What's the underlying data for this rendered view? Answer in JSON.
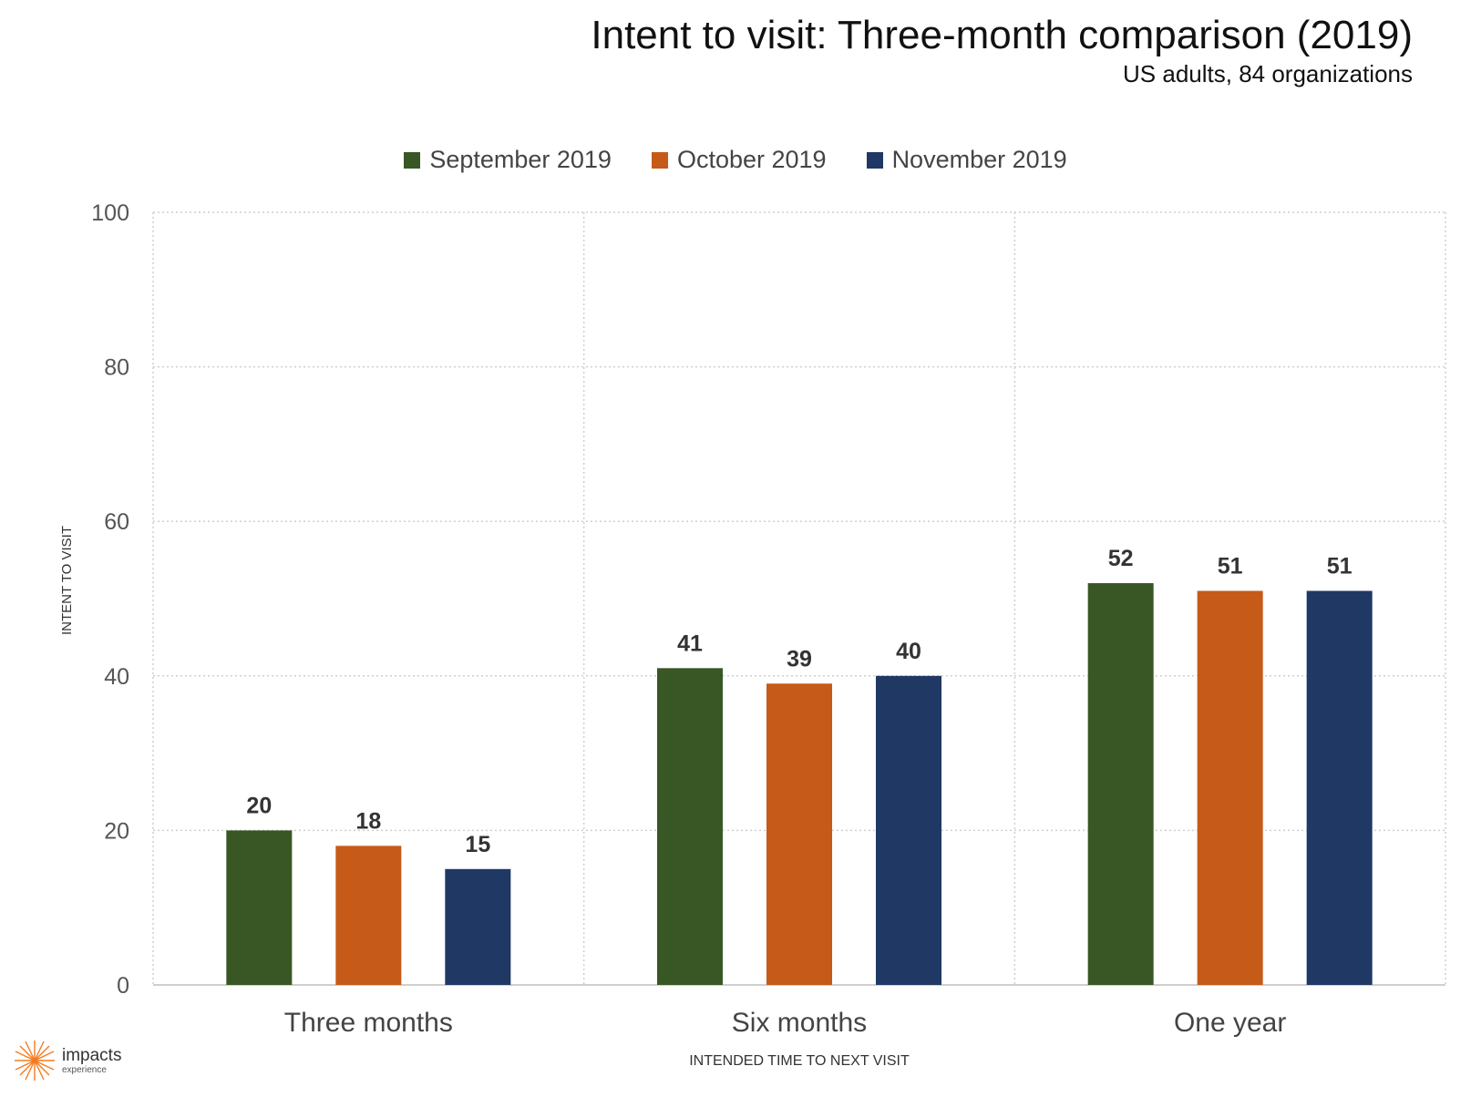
{
  "chart_data": {
    "type": "bar",
    "title": "Intent to visit: Three-month comparison (2019)",
    "subtitle": "US adults, 84 organizations",
    "xlabel": "INTENDED TIME TO NEXT VISIT",
    "ylabel": "INTENT TO VISIT",
    "categories": [
      "Three months",
      "Six months",
      "One year"
    ],
    "series": [
      {
        "name": "September 2019",
        "color": "#385724",
        "values": [
          20,
          41,
          52
        ]
      },
      {
        "name": "October 2019",
        "color": "#C55A19",
        "values": [
          18,
          39,
          51
        ]
      },
      {
        "name": "November 2019",
        "color": "#1F3864",
        "values": [
          15,
          40,
          51
        ]
      }
    ],
    "ylim": [
      0,
      100
    ],
    "yticks": [
      0,
      20,
      40,
      60,
      80,
      100
    ],
    "grid": true,
    "legend_position": "top"
  },
  "logo": {
    "name": "impacts",
    "sub": "experience",
    "icon": "starburst-icon",
    "color": "#F47B20"
  }
}
